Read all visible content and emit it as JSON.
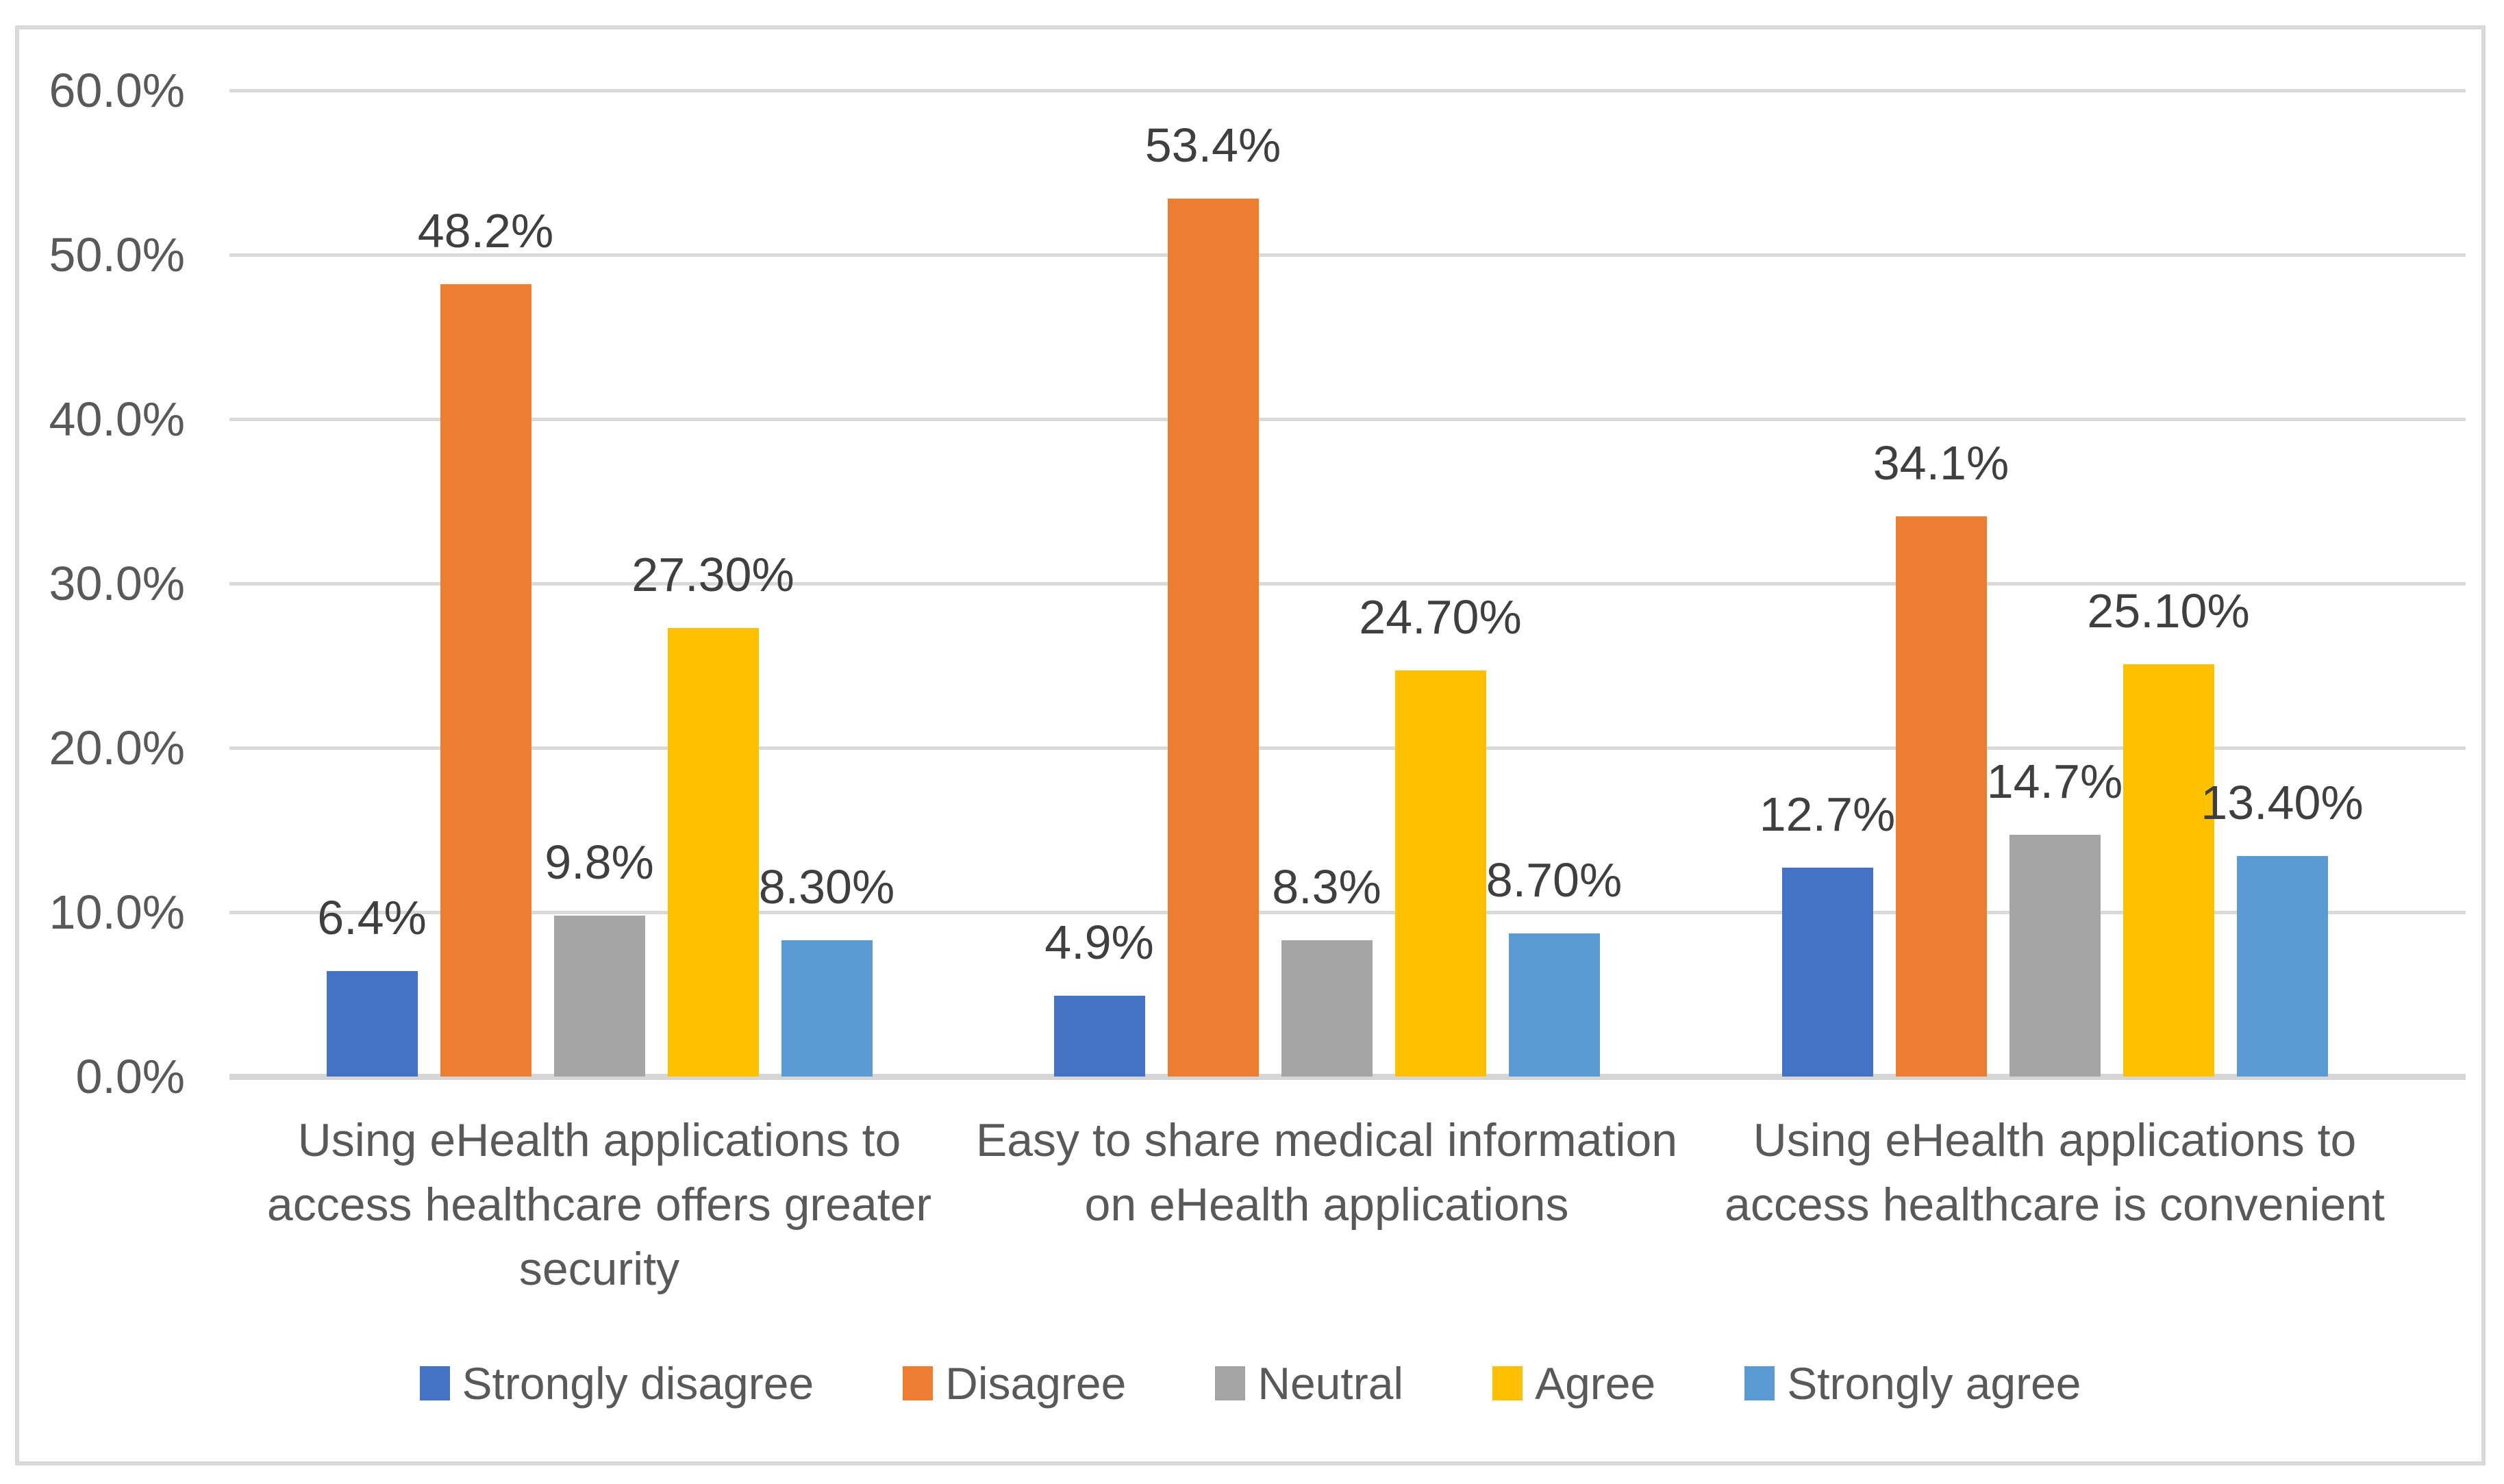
{
  "chart_data": {
    "type": "bar",
    "title": "",
    "categories": [
      "Using eHealth applications to access healthcare offers greater security",
      "Easy to share medical information on eHealth applications",
      "Using eHealth applications to access healthcare is convenient"
    ],
    "category_lines": [
      [
        "Using eHealth applications to",
        "access healthcare offers greater",
        "security"
      ],
      [
        "Easy to share medical information",
        "on eHealth applications"
      ],
      [
        "Using eHealth applications to",
        "access healthcare is convenient"
      ]
    ],
    "series": [
      {
        "name": "Strongly disagree",
        "color": "#4472C4",
        "values": [
          6.4,
          4.9,
          12.7
        ],
        "labels": [
          "6.4%",
          "4.9%",
          "12.7%"
        ]
      },
      {
        "name": "Disagree",
        "color": "#ED7D31",
        "values": [
          48.2,
          53.4,
          34.1
        ],
        "labels": [
          "48.2%",
          "53.4%",
          "34.1%"
        ]
      },
      {
        "name": "Neutral",
        "color": "#A5A5A5",
        "values": [
          9.8,
          8.3,
          14.7
        ],
        "labels": [
          "9.8%",
          "8.3%",
          "14.7%"
        ]
      },
      {
        "name": "Agree",
        "color": "#FFC000",
        "values": [
          27.3,
          24.7,
          25.1
        ],
        "labels": [
          "27.30%",
          "24.70%",
          "25.10%"
        ]
      },
      {
        "name": "Strongly agree",
        "color": "#5B9BD5",
        "values": [
          8.3,
          8.7,
          13.4
        ],
        "labels": [
          "8.30%",
          "8.70%",
          "13.40%"
        ]
      }
    ],
    "y_axis": {
      "ticks": [
        "60.0%",
        "50.0%",
        "40.0%",
        "30.0%",
        "20.0%",
        "10.0%",
        "0.0%"
      ],
      "min": 0,
      "max": 60,
      "step": 10,
      "format": "percent"
    },
    "legend": {
      "position": "bottom",
      "entries": [
        "Strongly disagree",
        "Disagree",
        "Neutral",
        "Agree",
        "Strongly agree"
      ]
    },
    "grid": true
  },
  "colors": {
    "background": "#FFFFFF",
    "frame_border": "#D9D9D9",
    "grid": "#D9D9D9",
    "axis_line": "#D6D6D6",
    "axis_text": "#595959",
    "data_label_text": "#3F3F3F",
    "category_text": "#595959",
    "legend_text": "#595959"
  }
}
